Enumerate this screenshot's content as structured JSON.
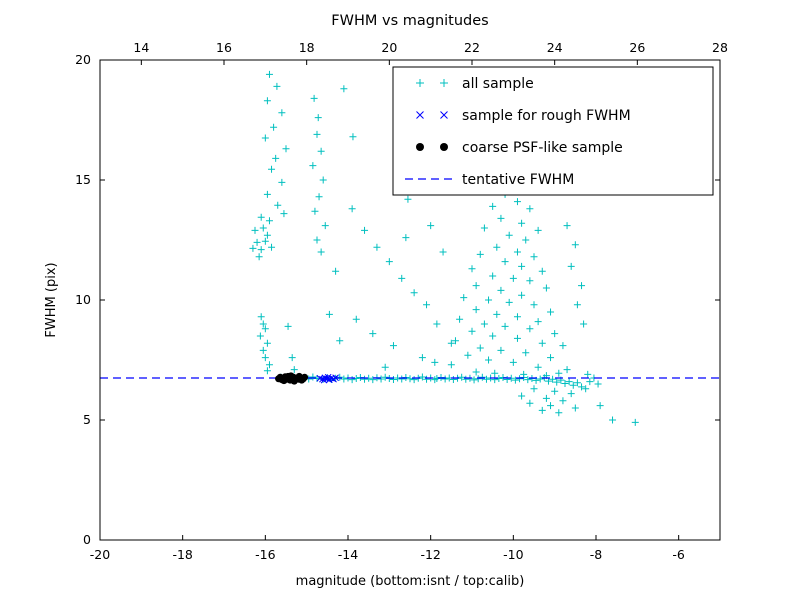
{
  "chart_data": {
    "type": "scatter",
    "title": "FWHM vs magnitudes",
    "xlabel": "magnitude (bottom:isnt / top:calib)",
    "ylabel": "FWHM (pix)",
    "xlim": [
      -20,
      -5
    ],
    "top_xlim": [
      13,
      28
    ],
    "ylim": [
      0,
      20
    ],
    "x_ticks": [
      -20,
      -18,
      -16,
      -14,
      -12,
      -10,
      -8,
      -6
    ],
    "top_x_ticks": [
      14,
      16,
      18,
      20,
      22,
      24,
      26,
      28
    ],
    "y_ticks": [
      0,
      5,
      10,
      15,
      20
    ],
    "grid": false,
    "legend_position": "upper right",
    "series": [
      {
        "name": "all sample",
        "marker": "+",
        "color": "#00bfbf",
        "points": [
          [
            -15.62,
            6.78
          ],
          [
            -15.52,
            6.72
          ],
          [
            -15.42,
            6.7
          ],
          [
            -15.33,
            6.8
          ],
          [
            -15.24,
            6.74
          ],
          [
            -15.15,
            6.68
          ],
          [
            -15.05,
            6.76
          ],
          [
            -14.95,
            6.71
          ],
          [
            -14.85,
            6.79
          ],
          [
            -14.75,
            6.73
          ],
          [
            -14.6,
            6.7
          ],
          [
            -14.5,
            6.76
          ],
          [
            -14.4,
            6.69
          ],
          [
            -14.3,
            6.74
          ],
          [
            -14.2,
            6.78
          ],
          [
            -14.1,
            6.71
          ],
          [
            -14.0,
            6.75
          ],
          [
            -13.9,
            6.68
          ],
          [
            -13.8,
            6.73
          ],
          [
            -13.7,
            6.77
          ],
          [
            -13.6,
            6.7
          ],
          [
            -13.5,
            6.74
          ],
          [
            -13.4,
            6.68
          ],
          [
            -13.3,
            6.76
          ],
          [
            -13.2,
            6.71
          ],
          [
            -13.1,
            6.78
          ],
          [
            -13.0,
            6.73
          ],
          [
            -12.9,
            6.69
          ],
          [
            -12.8,
            6.75
          ],
          [
            -12.7,
            6.71
          ],
          [
            -12.6,
            6.77
          ],
          [
            -12.5,
            6.72
          ],
          [
            -12.4,
            6.68
          ],
          [
            -12.3,
            6.74
          ],
          [
            -12.2,
            6.79
          ],
          [
            -12.1,
            6.7
          ],
          [
            -12.0,
            6.75
          ],
          [
            -11.9,
            6.68
          ],
          [
            -11.85,
            6.73
          ],
          [
            -11.75,
            6.77
          ],
          [
            -11.65,
            6.71
          ],
          [
            -11.55,
            6.75
          ],
          [
            -11.45,
            6.69
          ],
          [
            -11.35,
            6.74
          ],
          [
            -11.25,
            6.78
          ],
          [
            -11.15,
            6.7
          ],
          [
            -11.05,
            6.74
          ],
          [
            -10.95,
            6.67
          ],
          [
            -10.85,
            6.72
          ],
          [
            -10.75,
            6.78
          ],
          [
            -10.65,
            6.7
          ],
          [
            -10.55,
            6.75
          ],
          [
            -10.45,
            6.68
          ],
          [
            -10.35,
            6.73
          ],
          [
            -10.25,
            6.77
          ],
          [
            -10.15,
            6.69
          ],
          [
            -10.05,
            6.74
          ],
          [
            -9.95,
            6.66
          ],
          [
            -9.85,
            6.72
          ],
          [
            -9.75,
            6.77
          ],
          [
            -9.65,
            6.68
          ],
          [
            -9.55,
            6.73
          ],
          [
            -9.45,
            6.65
          ],
          [
            -9.35,
            6.71
          ],
          [
            -9.25,
            6.76
          ],
          [
            -9.15,
            6.62
          ],
          [
            -9.05,
            6.7
          ],
          [
            -8.95,
            6.58
          ],
          [
            -8.85,
            6.66
          ],
          [
            -8.75,
            6.52
          ],
          [
            -8.65,
            6.6
          ],
          [
            -8.55,
            6.45
          ],
          [
            -8.45,
            6.55
          ],
          [
            -8.35,
            6.38
          ],
          [
            -8.25,
            6.3
          ],
          [
            -16.1,
            9.3
          ],
          [
            -16.05,
            9.0
          ],
          [
            -16.0,
            8.8
          ],
          [
            -16.12,
            8.5
          ],
          [
            -15.95,
            8.2
          ],
          [
            -16.05,
            7.9
          ],
          [
            -16.0,
            7.6
          ],
          [
            -15.9,
            7.3
          ],
          [
            -15.95,
            7.05
          ],
          [
            -16.3,
            12.15
          ],
          [
            -16.2,
            12.4
          ],
          [
            -16.1,
            12.1
          ],
          [
            -16.0,
            12.45
          ],
          [
            -15.95,
            12.7
          ],
          [
            -16.05,
            13.0
          ],
          [
            -15.85,
            12.2
          ],
          [
            -16.15,
            11.8
          ],
          [
            -15.9,
            13.3
          ],
          [
            -16.25,
            12.9
          ],
          [
            -15.9,
            19.4
          ],
          [
            -15.72,
            18.9
          ],
          [
            -15.95,
            18.3
          ],
          [
            -15.6,
            17.8
          ],
          [
            -15.8,
            17.2
          ],
          [
            -16.0,
            16.75
          ],
          [
            -15.5,
            16.3
          ],
          [
            -15.75,
            15.9
          ],
          [
            -15.85,
            15.45
          ],
          [
            -15.6,
            14.9
          ],
          [
            -15.95,
            14.4
          ],
          [
            -15.7,
            13.95
          ],
          [
            -15.55,
            13.6
          ],
          [
            -16.1,
            13.45
          ],
          [
            -15.45,
            8.9
          ],
          [
            -15.35,
            7.6
          ],
          [
            -15.3,
            7.1
          ],
          [
            -14.82,
            18.4
          ],
          [
            -14.1,
            18.8
          ],
          [
            -14.72,
            17.6
          ],
          [
            -14.75,
            16.9
          ],
          [
            -13.88,
            16.8
          ],
          [
            -14.65,
            16.2
          ],
          [
            -14.85,
            15.6
          ],
          [
            -14.6,
            15.0
          ],
          [
            -14.7,
            14.3
          ],
          [
            -14.8,
            13.7
          ],
          [
            -14.55,
            13.1
          ],
          [
            -14.75,
            12.5
          ],
          [
            -14.65,
            12.0
          ],
          [
            -14.3,
            11.2
          ],
          [
            -14.45,
            9.4
          ],
          [
            -14.2,
            8.3
          ],
          [
            -13.9,
            13.8
          ],
          [
            -13.6,
            12.9
          ],
          [
            -13.3,
            12.2
          ],
          [
            -13.0,
            11.6
          ],
          [
            -12.7,
            10.9
          ],
          [
            -12.4,
            10.3
          ],
          [
            -12.1,
            9.8
          ],
          [
            -13.8,
            9.2
          ],
          [
            -13.4,
            8.6
          ],
          [
            -12.9,
            8.1
          ],
          [
            -12.2,
            7.6
          ],
          [
            -13.1,
            7.2
          ],
          [
            -12.55,
            14.2
          ],
          [
            -12.0,
            13.1
          ],
          [
            -12.6,
            12.6
          ],
          [
            -11.7,
            12.0
          ],
          [
            -11.85,
            9.0
          ],
          [
            -11.5,
            8.2
          ],
          [
            -11.9,
            7.4
          ],
          [
            -10.2,
            14.4
          ],
          [
            -9.9,
            14.1
          ],
          [
            -10.5,
            13.9
          ],
          [
            -9.6,
            13.8
          ],
          [
            -10.0,
            14.8
          ],
          [
            -9.65,
            14.6
          ],
          [
            -10.3,
            13.4
          ],
          [
            -9.8,
            13.2
          ],
          [
            -10.7,
            13.0
          ],
          [
            -9.4,
            12.9
          ],
          [
            -10.1,
            12.7
          ],
          [
            -9.7,
            12.5
          ],
          [
            -10.4,
            12.2
          ],
          [
            -9.9,
            12.0
          ],
          [
            -10.8,
            11.9
          ],
          [
            -9.5,
            11.8
          ],
          [
            -10.2,
            11.6
          ],
          [
            -9.8,
            11.4
          ],
          [
            -11.0,
            11.3
          ],
          [
            -9.3,
            11.2
          ],
          [
            -10.5,
            11.0
          ],
          [
            -10.0,
            10.9
          ],
          [
            -9.6,
            10.8
          ],
          [
            -10.9,
            10.6
          ],
          [
            -9.2,
            10.5
          ],
          [
            -10.3,
            10.4
          ],
          [
            -9.8,
            10.2
          ],
          [
            -11.2,
            10.1
          ],
          [
            -10.6,
            10.0
          ],
          [
            -10.1,
            9.9
          ],
          [
            -9.5,
            9.8
          ],
          [
            -10.9,
            9.6
          ],
          [
            -9.1,
            9.5
          ],
          [
            -10.4,
            9.4
          ],
          [
            -9.9,
            9.3
          ],
          [
            -11.3,
            9.2
          ],
          [
            -9.4,
            9.1
          ],
          [
            -10.7,
            9.0
          ],
          [
            -10.2,
            8.9
          ],
          [
            -9.6,
            8.8
          ],
          [
            -11.0,
            8.7
          ],
          [
            -9.0,
            8.6
          ],
          [
            -10.5,
            8.5
          ],
          [
            -9.9,
            8.4
          ],
          [
            -11.4,
            8.3
          ],
          [
            -9.3,
            8.2
          ],
          [
            -8.8,
            8.1
          ],
          [
            -10.8,
            8.0
          ],
          [
            -10.3,
            7.9
          ],
          [
            -9.7,
            7.8
          ],
          [
            -11.1,
            7.7
          ],
          [
            -9.1,
            7.6
          ],
          [
            -10.6,
            7.5
          ],
          [
            -10.0,
            7.4
          ],
          [
            -11.5,
            7.3
          ],
          [
            -9.4,
            7.2
          ],
          [
            -8.7,
            7.1
          ],
          [
            -10.9,
            7.0
          ],
          [
            -10.45,
            6.95
          ],
          [
            -9.75,
            6.9
          ],
          [
            -9.2,
            6.85
          ],
          [
            -8.9,
            6.95
          ],
          [
            -9.5,
            6.3
          ],
          [
            -9.0,
            6.2
          ],
          [
            -8.6,
            6.1
          ],
          [
            -9.8,
            6.0
          ],
          [
            -9.2,
            5.9
          ],
          [
            -8.8,
            5.8
          ],
          [
            -9.6,
            5.7
          ],
          [
            -9.1,
            5.6
          ],
          [
            -8.5,
            5.5
          ],
          [
            -9.3,
            5.4
          ],
          [
            -8.9,
            5.3
          ],
          [
            -8.2,
            6.9
          ],
          [
            -8.15,
            6.6
          ],
          [
            -8.05,
            6.75
          ],
          [
            -7.95,
            6.5
          ],
          [
            -7.9,
            5.6
          ],
          [
            -7.6,
            5.0
          ],
          [
            -7.05,
            4.9
          ],
          [
            -8.3,
            9.0
          ],
          [
            -8.45,
            9.8
          ],
          [
            -8.35,
            10.6
          ],
          [
            -8.6,
            11.4
          ],
          [
            -8.5,
            12.3
          ],
          [
            -8.7,
            13.1
          ]
        ]
      },
      {
        "name": "sample for rough FWHM",
        "marker": "x",
        "color": "#0000ff",
        "points": [
          [
            -14.68,
            6.74
          ],
          [
            -14.62,
            6.7
          ],
          [
            -14.56,
            6.76
          ],
          [
            -14.5,
            6.72
          ],
          [
            -14.45,
            6.68
          ],
          [
            -14.4,
            6.74
          ],
          [
            -14.35,
            6.7
          ],
          [
            -14.3,
            6.76
          ],
          [
            -14.48,
            6.78
          ],
          [
            -14.58,
            6.66
          ]
        ]
      },
      {
        "name": "coarse PSF-like sample",
        "marker": "o",
        "color": "#000000",
        "points": [
          [
            -15.68,
            6.72
          ],
          [
            -15.64,
            6.78
          ],
          [
            -15.6,
            6.68
          ],
          [
            -15.56,
            6.74
          ],
          [
            -15.52,
            6.8
          ],
          [
            -15.48,
            6.7
          ],
          [
            -15.44,
            6.76
          ],
          [
            -15.4,
            6.66
          ],
          [
            -15.36,
            6.72
          ],
          [
            -15.32,
            6.78
          ],
          [
            -15.28,
            6.68
          ],
          [
            -15.24,
            6.74
          ],
          [
            -15.2,
            6.7
          ],
          [
            -15.16,
            6.76
          ],
          [
            -15.12,
            6.66
          ],
          [
            -15.08,
            6.72
          ],
          [
            -15.05,
            6.78
          ],
          [
            -15.45,
            6.82
          ],
          [
            -15.3,
            6.62
          ],
          [
            -15.55,
            6.64
          ],
          [
            -15.18,
            6.82
          ],
          [
            -15.38,
            6.84
          ]
        ]
      },
      {
        "name": "tentative FWHM",
        "type": "hline",
        "style": "dashed",
        "color": "#0000ff",
        "y": 6.75
      }
    ]
  }
}
